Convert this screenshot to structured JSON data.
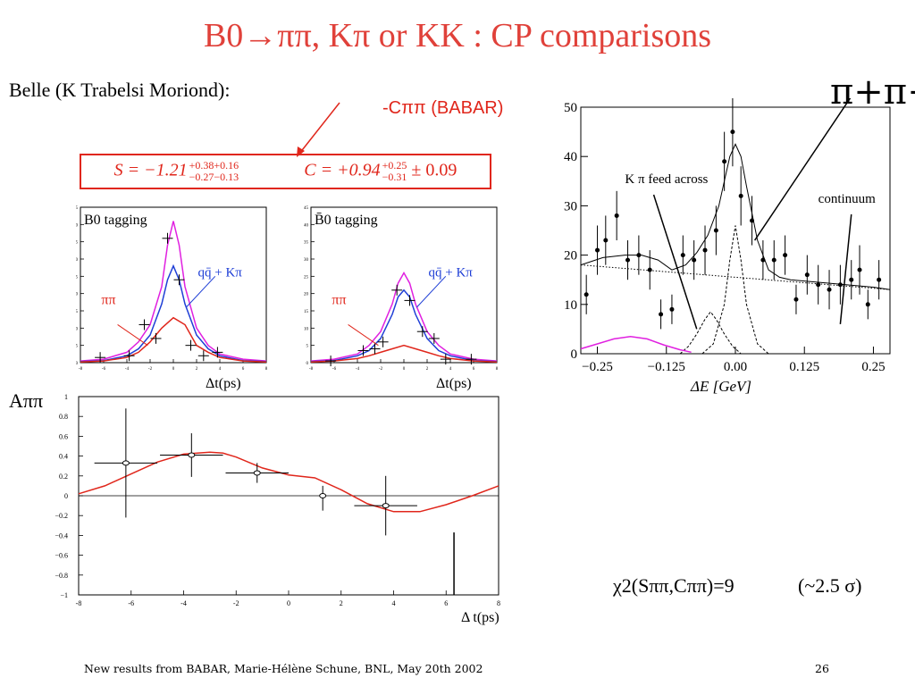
{
  "slide": {
    "title": "B0→ππ, Kπ or KK : CP comparisons",
    "belle_label": "Belle (K Trabelsi Moriond):",
    "c_babar": "-Cππ (BABAR)",
    "s_result": "S = −1.21",
    "s_sup": "+0.38+0.16",
    "s_sub": "−0.27−0.13",
    "c_result": "C = +0.94",
    "c_sup": "+0.25",
    "c_sub": "−0.31",
    "c_tail": "± 0.09",
    "footer_left": "New results from BABAR, Marie-Hélène Schune, BNL, May 20th 2002",
    "footer_right": "26",
    "chi2": "χ2(Sππ,Cππ)=9",
    "sigma": "(~2.5 σ)",
    "pipi_big": "π+π−",
    "a_label": "Aππ"
  },
  "colors": {
    "title": "#e0413a",
    "red": "#e0261b",
    "blue": "#1f3fd6",
    "magenta": "#e020e0"
  },
  "chart_data": [
    {
      "id": "b0-tagging",
      "type": "line",
      "title": "B0 tagging",
      "xlabel": "Δt(ps)",
      "xlim": [
        -8,
        8
      ],
      "ylim": [
        0,
        45
      ],
      "x_ticks": [
        -8,
        -6,
        -4,
        -2,
        0,
        2,
        4,
        6,
        8
      ],
      "y_ticks": [
        0,
        5,
        10,
        15,
        20,
        25,
        30,
        35,
        40,
        45
      ],
      "annotations": [
        "qq̄ + Kπ",
        "ππ"
      ],
      "series": [
        {
          "color": "magenta",
          "x": [
            -8,
            -6,
            -4,
            -3,
            -2,
            -1,
            -0.5,
            0,
            0.5,
            1,
            2,
            3,
            4,
            6,
            8
          ],
          "y": [
            0.5,
            1,
            3,
            6,
            11,
            22,
            34,
            41,
            34,
            22,
            10,
            5,
            2.5,
            1,
            0.5
          ]
        },
        {
          "color": "blue",
          "x": [
            -8,
            -6,
            -4,
            -3,
            -2,
            -1,
            -0.5,
            0,
            0.5,
            1,
            2,
            3,
            4,
            6,
            8
          ],
          "y": [
            0.3,
            0.6,
            2,
            4,
            8,
            17,
            24,
            28,
            24,
            17,
            8,
            4,
            2,
            0.6,
            0.3
          ]
        },
        {
          "color": "red",
          "x": [
            -8,
            -6,
            -4,
            -3,
            -2,
            -1,
            0,
            1,
            2,
            3,
            4,
            6,
            8
          ],
          "y": [
            0.2,
            0.5,
            1.5,
            3,
            6,
            10,
            13,
            11,
            5,
            3,
            1.5,
            0.5,
            0.2
          ]
        }
      ],
      "points": [
        {
          "x": -6.3,
          "y": 1.5
        },
        {
          "x": -3.8,
          "y": 2.0
        },
        {
          "x": -2.5,
          "y": 11
        },
        {
          "x": -1.5,
          "y": 7
        },
        {
          "x": -0.5,
          "y": 36
        },
        {
          "x": 0.5,
          "y": 24
        },
        {
          "x": 1.5,
          "y": 5
        },
        {
          "x": 2.6,
          "y": 2
        },
        {
          "x": 3.8,
          "y": 3
        }
      ]
    },
    {
      "id": "b0bar-tagging",
      "type": "line",
      "title": "B̄0 tagging",
      "xlabel": "Δt(ps)",
      "xlim": [
        -8,
        8
      ],
      "ylim": [
        0,
        45
      ],
      "x_ticks": [
        -8,
        -6,
        -4,
        -2,
        0,
        2,
        4,
        6,
        8
      ],
      "y_ticks": [
        0,
        5,
        10,
        15,
        20,
        25,
        30,
        35,
        40,
        45
      ],
      "annotations": [
        "qq̄ + Kπ",
        "ππ"
      ],
      "series": [
        {
          "color": "magenta",
          "x": [
            -8,
            -6,
            -4,
            -3,
            -2,
            -1,
            -0.5,
            0,
            0.5,
            1,
            2,
            3,
            4,
            6,
            8
          ],
          "y": [
            0.5,
            1,
            2.5,
            5,
            9,
            17,
            23,
            26,
            23,
            17,
            9,
            5,
            2.5,
            1,
            0.5
          ]
        },
        {
          "color": "blue",
          "x": [
            -8,
            -6,
            -4,
            -3,
            -2,
            -1,
            -0.5,
            0,
            0.5,
            1,
            2,
            3,
            4,
            6,
            8
          ],
          "y": [
            0.3,
            0.6,
            2,
            3.5,
            7,
            14,
            19,
            21,
            19,
            14,
            7,
            3.5,
            2,
            0.6,
            0.3
          ]
        },
        {
          "color": "red",
          "x": [
            -8,
            -6,
            -4,
            -3,
            -2,
            -1,
            0,
            1,
            2,
            3,
            4,
            6,
            8
          ],
          "y": [
            0.2,
            0.5,
            1.2,
            2,
            3,
            4,
            5,
            4,
            3,
            2,
            1.2,
            0.5,
            0.2
          ]
        }
      ],
      "points": [
        {
          "x": -6.3,
          "y": 0.5
        },
        {
          "x": -3.5,
          "y": 3.5
        },
        {
          "x": -2.5,
          "y": 4
        },
        {
          "x": -1.8,
          "y": 6
        },
        {
          "x": -0.6,
          "y": 21
        },
        {
          "x": 0.5,
          "y": 18
        },
        {
          "x": 1.6,
          "y": 9
        },
        {
          "x": 2.6,
          "y": 7
        },
        {
          "x": 3.6,
          "y": 1
        },
        {
          "x": 5.8,
          "y": 1
        }
      ]
    },
    {
      "id": "delta-e",
      "type": "scatter",
      "xlabel": "ΔE [GeV]",
      "xlim": [
        -0.28,
        0.28
      ],
      "ylim": [
        0,
        50
      ],
      "x_ticks": [
        -0.25,
        -0.125,
        0.0,
        0.125,
        0.25
      ],
      "x_tick_labels": [
        "−0.25",
        "−0.125",
        "0.00",
        "0.125",
        "0.25"
      ],
      "y_ticks": [
        0,
        10,
        20,
        30,
        40,
        50
      ],
      "annotations": [
        "K π feed across",
        "continuum"
      ],
      "points": [
        {
          "x": -0.27,
          "y": 12,
          "err": 4
        },
        {
          "x": -0.25,
          "y": 21,
          "err": 5
        },
        {
          "x": -0.235,
          "y": 23,
          "err": 5
        },
        {
          "x": -0.215,
          "y": 28,
          "err": 5
        },
        {
          "x": -0.195,
          "y": 19,
          "err": 4
        },
        {
          "x": -0.175,
          "y": 20,
          "err": 4
        },
        {
          "x": -0.155,
          "y": 17,
          "err": 4
        },
        {
          "x": -0.135,
          "y": 8,
          "err": 3
        },
        {
          "x": -0.115,
          "y": 9,
          "err": 3
        },
        {
          "x": -0.095,
          "y": 20,
          "err": 4
        },
        {
          "x": -0.075,
          "y": 19,
          "err": 4
        },
        {
          "x": -0.055,
          "y": 21,
          "err": 5
        },
        {
          "x": -0.035,
          "y": 25,
          "err": 5
        },
        {
          "x": -0.02,
          "y": 39,
          "err": 6
        },
        {
          "x": -0.005,
          "y": 45,
          "err": 7
        },
        {
          "x": 0.01,
          "y": 32,
          "err": 6
        },
        {
          "x": 0.03,
          "y": 27,
          "err": 5
        },
        {
          "x": 0.05,
          "y": 19,
          "err": 4
        },
        {
          "x": 0.07,
          "y": 19,
          "err": 4
        },
        {
          "x": 0.09,
          "y": 20,
          "err": 4
        },
        {
          "x": 0.11,
          "y": 11,
          "err": 3
        },
        {
          "x": 0.13,
          "y": 16,
          "err": 4
        },
        {
          "x": 0.15,
          "y": 14,
          "err": 4
        },
        {
          "x": 0.17,
          "y": 13,
          "err": 4
        },
        {
          "x": 0.19,
          "y": 14,
          "err": 4
        },
        {
          "x": 0.21,
          "y": 15,
          "err": 4
        },
        {
          "x": 0.225,
          "y": 17,
          "err": 5
        },
        {
          "x": 0.24,
          "y": 10,
          "err": 3
        },
        {
          "x": 0.26,
          "y": 15,
          "err": 4
        }
      ],
      "series": [
        {
          "name": "total",
          "style": "solid",
          "x": [
            -0.28,
            -0.24,
            -0.2,
            -0.17,
            -0.14,
            -0.115,
            -0.09,
            -0.07,
            -0.05,
            -0.03,
            -0.02,
            -0.01,
            0,
            0.01,
            0.02,
            0.04,
            0.06,
            0.08,
            0.1,
            0.15,
            0.2,
            0.25,
            0.28
          ],
          "y": [
            18,
            19.5,
            20,
            20,
            19,
            17,
            18,
            20.5,
            24,
            30,
            35,
            40,
            42.5,
            40,
            34,
            23,
            17,
            15.5,
            15,
            14.5,
            14,
            13.5,
            13
          ]
        },
        {
          "name": "continuum",
          "style": "dotted",
          "x": [
            -0.28,
            0.28
          ],
          "y": [
            18,
            13
          ]
        },
        {
          "name": "pipi-signal",
          "style": "dashed",
          "x": [
            -0.06,
            -0.04,
            -0.02,
            -0.01,
            0,
            0.01,
            0.02,
            0.04,
            0.06
          ],
          "y": [
            0,
            2,
            10,
            19,
            26,
            19,
            10,
            2,
            0
          ]
        },
        {
          "name": "kpi-feed",
          "style": "dashed",
          "x": [
            -0.1,
            -0.085,
            -0.07,
            -0.055,
            -0.045,
            -0.035,
            -0.02,
            -0.005,
            0.01
          ],
          "y": [
            0,
            1.5,
            4,
            7,
            8.5,
            7,
            4,
            1.5,
            0
          ]
        },
        {
          "name": "kk",
          "style": "magenta",
          "x": [
            -0.28,
            -0.25,
            -0.22,
            -0.19,
            -0.16,
            -0.13,
            -0.1,
            -0.08
          ],
          "y": [
            1,
            2,
            3,
            3.5,
            3,
            1.8,
            0.8,
            0.3
          ]
        }
      ]
    },
    {
      "id": "a-pipi",
      "type": "line",
      "xlabel": "Δ t(ps)",
      "ylabel": "Aππ",
      "xlim": [
        -8,
        8
      ],
      "ylim": [
        -1,
        1
      ],
      "x_ticks": [
        -8,
        -6,
        -4,
        -2,
        0,
        2,
        4,
        6,
        8
      ],
      "y_ticks": [
        -1,
        -0.8,
        -0.6,
        -0.4,
        -0.2,
        0,
        0.2,
        0.4,
        0.6,
        0.8,
        1
      ],
      "y_tick_labels": [
        "−1",
        "−0.8",
        "−0.6",
        "−0.4",
        "−0.2",
        "0",
        "0.2",
        "0.4",
        "0.6",
        "0.8",
        "1"
      ],
      "points": [
        {
          "x": -6.2,
          "y": 0.33,
          "xerr": 1.2,
          "yerr_up": 0.55,
          "yerr_dn": 0.55
        },
        {
          "x": -3.7,
          "y": 0.41,
          "xerr": 1.2,
          "yerr_up": 0.22,
          "yerr_dn": 0.22
        },
        {
          "x": -1.2,
          "y": 0.23,
          "xerr": 1.2,
          "yerr_up": 0.1,
          "yerr_dn": 0.1
        },
        {
          "x": 1.3,
          "y": 0.0,
          "xerr": 0.0,
          "yerr_up": 0.1,
          "yerr_dn": 0.15
        },
        {
          "x": 3.7,
          "y": -0.1,
          "xerr": 1.2,
          "yerr_up": 0.3,
          "yerr_dn": 0.3
        }
      ],
      "series": [
        {
          "color": "red",
          "x": [
            -8,
            -7,
            -6,
            -5,
            -4,
            -3,
            -2.5,
            -2,
            -1,
            0,
            1,
            2,
            3,
            4,
            5,
            6,
            7,
            8
          ],
          "y": [
            0.02,
            0.1,
            0.22,
            0.34,
            0.42,
            0.44,
            0.43,
            0.39,
            0.28,
            0.21,
            0.18,
            0.06,
            -0.08,
            -0.16,
            -0.16,
            -0.09,
            0.0,
            0.1
          ]
        }
      ],
      "extra_lines": [
        {
          "x": 6.3,
          "y1": -1.0,
          "y2": -0.37
        }
      ]
    }
  ]
}
